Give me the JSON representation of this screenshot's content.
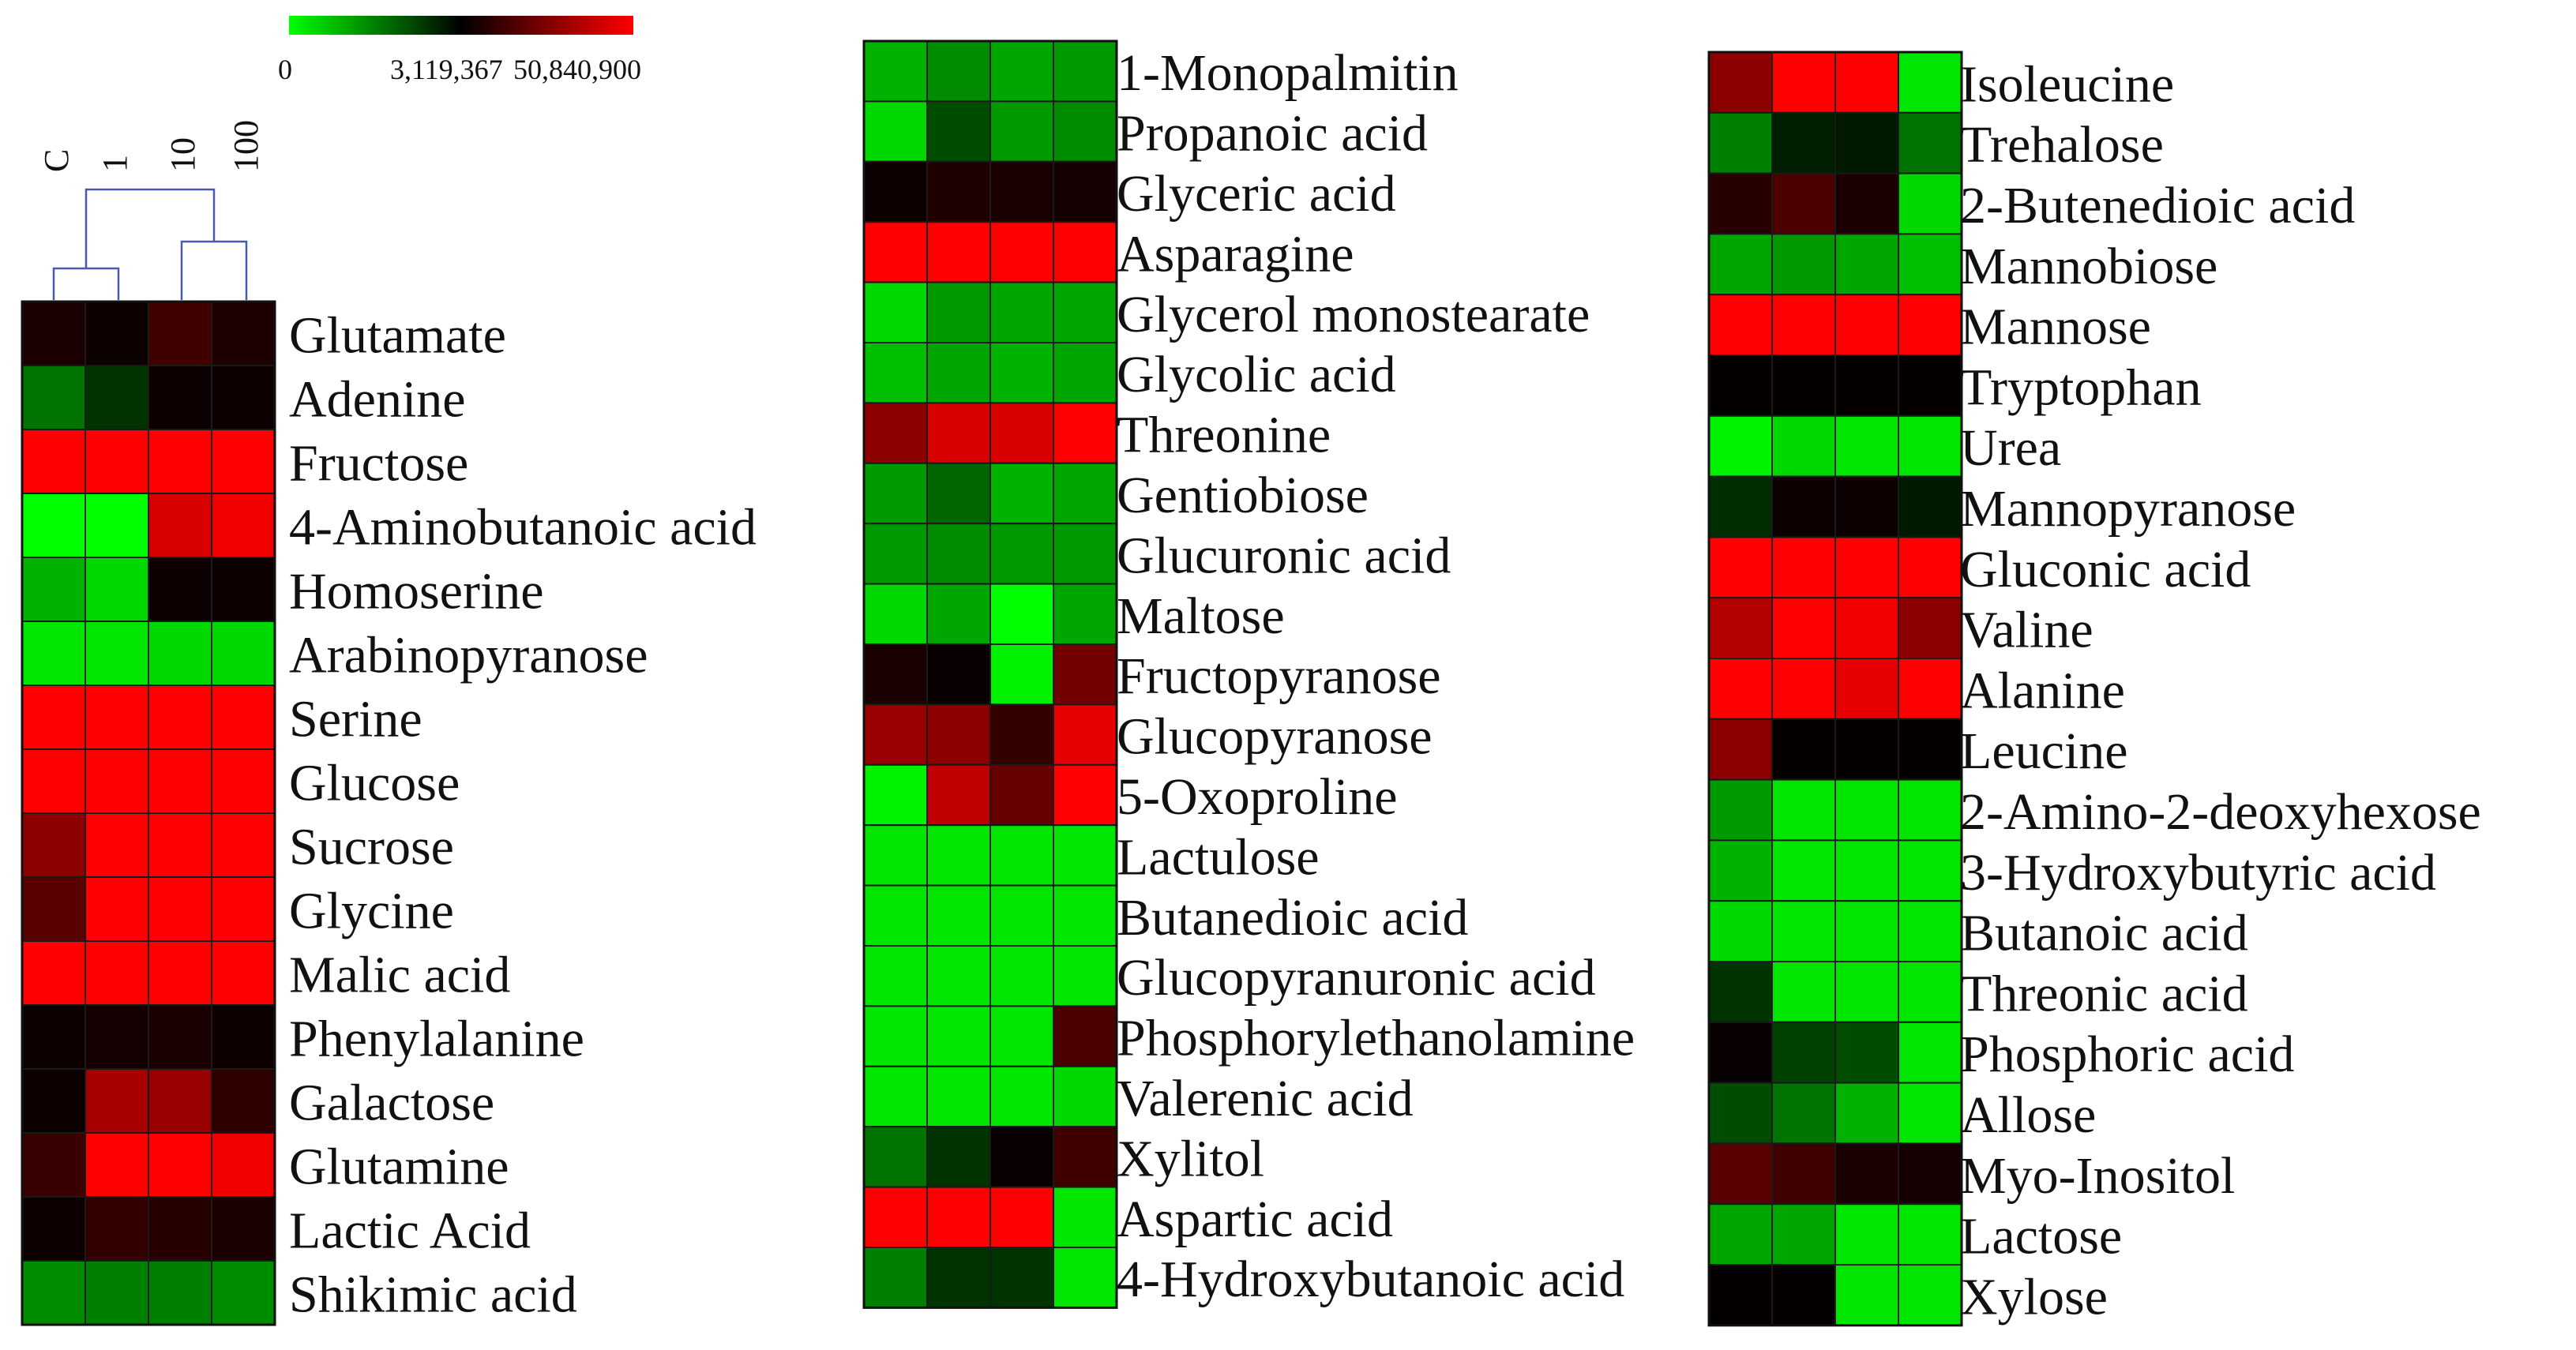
{
  "chart_data": {
    "type": "heatmap",
    "colorbar": {
      "ticks": [
        "0",
        "3,119,367",
        "50,840,900"
      ],
      "colors": [
        "#00ff00",
        "#000000",
        "#ff0000"
      ]
    },
    "columns": [
      "C",
      "1",
      "10",
      "100"
    ],
    "cell_scale_note": "cell values are color positions on the scale: -1 = full green, 0 = black, 1 = full red",
    "panels": [
      {
        "rows": [
          "Glutamate",
          "Adenine",
          "Fructose",
          "4-Aminobutanoic acid",
          "Homoserine",
          "Arabinopyranose",
          "Serine",
          "Glucose",
          "Sucrose",
          "Glycine",
          "Malic acid",
          "Phenylalanine",
          "Galactose",
          "Glutamine",
          "Lactic Acid",
          "Shikimic acid"
        ],
        "values": [
          [
            0.1,
            0.05,
            0.25,
            0.12
          ],
          [
            -0.45,
            -0.2,
            0.05,
            0.05
          ],
          [
            1,
            1,
            1,
            1
          ],
          [
            -1,
            -1,
            0.85,
            0.95
          ],
          [
            -0.7,
            -0.85,
            0.05,
            0.05
          ],
          [
            -0.9,
            -0.9,
            -0.85,
            -0.85
          ],
          [
            1,
            1,
            1,
            1
          ],
          [
            1,
            1,
            1,
            1
          ],
          [
            0.55,
            1,
            1,
            1
          ],
          [
            0.35,
            1,
            1,
            1
          ],
          [
            1,
            1,
            1,
            1
          ],
          [
            0.05,
            0.08,
            0.1,
            0.05
          ],
          [
            0.05,
            0.65,
            0.6,
            0.18
          ],
          [
            0.22,
            1,
            1,
            0.95
          ],
          [
            0.05,
            0.2,
            0.15,
            0.1
          ],
          [
            -0.55,
            -0.5,
            -0.5,
            -0.55
          ]
        ],
        "dendrogram": true
      },
      {
        "rows": [
          "1-Monopalmitin",
          "Propanoic acid",
          "Glyceric acid",
          "Asparagine",
          "Glycerol monostearate",
          "Glycolic acid",
          "Threonine",
          "Gentiobiose",
          "Glucuronic acid",
          "Maltose",
          "Fructopyranose",
          "Glucopyranose",
          "5-Oxoproline",
          "Lactulose",
          "Butanedioic acid",
          "Glucopyranuronic acid",
          "Phosphorylethanolamine",
          "Valerenic acid",
          "Xylitol",
          "Aspartic acid",
          "4-Hydroxybutanoic acid"
        ],
        "values": [
          [
            -0.7,
            -0.55,
            -0.65,
            -0.6
          ],
          [
            -0.85,
            -0.3,
            -0.6,
            -0.55
          ],
          [
            0.05,
            0.12,
            0.1,
            0.08
          ],
          [
            1,
            1,
            1,
            1
          ],
          [
            -0.85,
            -0.6,
            -0.65,
            -0.65
          ],
          [
            -0.75,
            -0.65,
            -0.7,
            -0.65
          ],
          [
            0.55,
            0.85,
            0.85,
            1
          ],
          [
            -0.6,
            -0.4,
            -0.7,
            -0.65
          ],
          [
            -0.6,
            -0.55,
            -0.6,
            -0.6
          ],
          [
            -0.85,
            -0.65,
            -1,
            -0.65
          ],
          [
            0.1,
            0.03,
            -0.95,
            0.45
          ],
          [
            0.6,
            0.55,
            0.2,
            0.9
          ],
          [
            -0.95,
            0.75,
            0.4,
            1
          ],
          [
            -0.9,
            -0.9,
            -0.9,
            -0.9
          ],
          [
            -0.9,
            -0.9,
            -0.9,
            -0.9
          ],
          [
            -0.9,
            -0.9,
            -0.9,
            -0.9
          ],
          [
            -0.9,
            -0.9,
            -0.9,
            0.3
          ],
          [
            -0.9,
            -0.9,
            -0.9,
            -0.85
          ],
          [
            -0.45,
            -0.2,
            0.03,
            0.25
          ],
          [
            1,
            1,
            1,
            -0.9
          ],
          [
            -0.5,
            -0.2,
            -0.2,
            -0.9
          ]
        ],
        "dendrogram": false
      },
      {
        "rows": [
          "Isoleucine",
          "Trehalose",
          "2-Butenedioic acid",
          "Mannobiose",
          "Mannose",
          "Tryptophan",
          "Urea",
          "Mannopyranose",
          "Gluconic acid",
          "Valine",
          "Alanine",
          "Leucine",
          "2-Amino-2-deoxyhexose",
          "3-Hydroxybutyric acid",
          "Butanoic acid",
          "Threonic acid",
          "Phosphoric acid",
          "Allose",
          "Myo-Inositol",
          "Lactose",
          "Xylose"
        ],
        "values": [
          [
            0.55,
            1,
            1,
            -0.9
          ],
          [
            -0.5,
            -0.12,
            -0.1,
            -0.45
          ],
          [
            0.15,
            0.3,
            0.1,
            -0.85
          ],
          [
            -0.65,
            -0.6,
            -0.65,
            -0.75
          ],
          [
            1,
            1,
            1,
            1
          ],
          [
            0.02,
            0.02,
            0.02,
            0.02
          ],
          [
            -0.95,
            -0.85,
            -0.9,
            -0.9
          ],
          [
            -0.18,
            0.05,
            0.05,
            -0.1
          ],
          [
            1,
            1,
            1,
            1
          ],
          [
            0.7,
            1,
            0.95,
            0.55
          ],
          [
            1,
            1,
            0.9,
            1
          ],
          [
            0.55,
            0.02,
            0.02,
            0.02
          ],
          [
            -0.6,
            -0.9,
            -0.9,
            -0.9
          ],
          [
            -0.7,
            -0.9,
            -0.9,
            -0.9
          ],
          [
            -0.85,
            -0.9,
            -0.9,
            -0.9
          ],
          [
            -0.2,
            -0.9,
            -0.9,
            -0.9
          ],
          [
            0.03,
            -0.25,
            -0.3,
            -0.9
          ],
          [
            -0.3,
            -0.45,
            -0.7,
            -0.9
          ],
          [
            0.35,
            0.25,
            0.1,
            0.08
          ],
          [
            -0.65,
            -0.65,
            -0.9,
            -0.9
          ],
          [
            0.02,
            0.02,
            -0.9,
            -0.9
          ]
        ],
        "dendrogram": false
      }
    ]
  }
}
